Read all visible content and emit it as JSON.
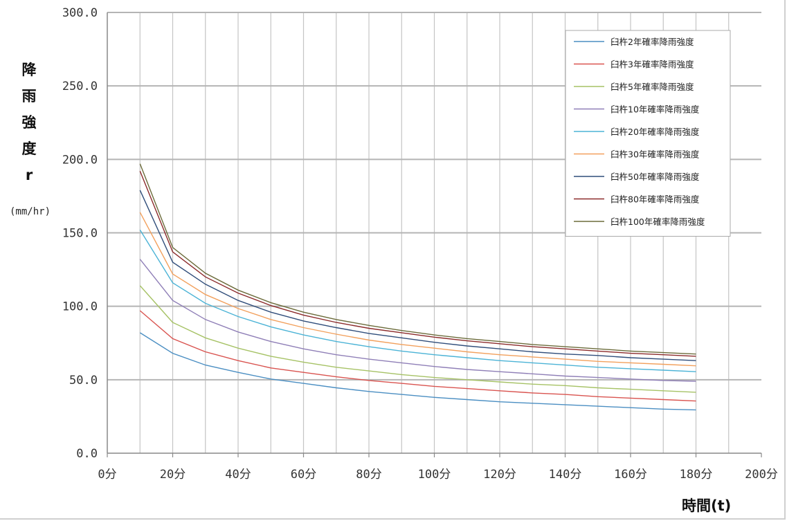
{
  "chart_data": {
    "type": "line",
    "title": "",
    "ylabel_chars": [
      "降",
      "雨",
      "強",
      "度",
      "r"
    ],
    "yunit": "(mm/hr)",
    "xlabel": "時間(t)",
    "ylim": [
      0,
      300
    ],
    "xlim": [
      0,
      200
    ],
    "yticks": [
      "0.0",
      "50.0",
      "100.0",
      "150.0",
      "200.0",
      "250.0",
      "300.0"
    ],
    "xticks": [
      "0分",
      "20分",
      "40分",
      "60分",
      "80分",
      "100分",
      "120分",
      "140分",
      "160分",
      "180分",
      "200分"
    ],
    "grid": true,
    "legend_position": "top-right",
    "x": [
      10,
      20,
      30,
      40,
      50,
      60,
      70,
      80,
      90,
      100,
      110,
      120,
      130,
      140,
      150,
      160,
      170,
      180
    ],
    "series": [
      {
        "name": "臼杵2年確率降雨強度",
        "color": "#4a8ec2",
        "values": [
          82,
          68,
          60,
          55,
          50.5,
          47.5,
          44.5,
          42,
          40,
          38,
          36.5,
          35,
          34,
          33,
          32,
          31,
          30,
          29.5
        ]
      },
      {
        "name": "臼杵3年確率降雨強度",
        "color": "#d9534f",
        "values": [
          97,
          78,
          69,
          63,
          58,
          55,
          52,
          49.5,
          47.5,
          45.5,
          44,
          42.5,
          41,
          40,
          38.5,
          37.5,
          36.5,
          35.5
        ]
      },
      {
        "name": "臼杵5年確率降雨強度",
        "color": "#a6c265",
        "values": [
          114,
          89,
          78.5,
          71.5,
          66,
          62,
          58.5,
          56,
          53.5,
          51.5,
          50,
          48.5,
          47,
          46,
          44.5,
          43.5,
          42.5,
          41.5
        ]
      },
      {
        "name": "臼杵10年確率降雨強度",
        "color": "#8f7fb7",
        "values": [
          132,
          104,
          91,
          82.5,
          76,
          71,
          67,
          64,
          61.5,
          59,
          57,
          55.5,
          54,
          52.5,
          51.5,
          50.5,
          49.5,
          49
        ]
      },
      {
        "name": "臼杵20年確率降雨強度",
        "color": "#4bb3d6",
        "values": [
          152,
          116,
          102,
          93,
          86,
          80.5,
          76,
          72.5,
          69.5,
          67,
          65,
          63,
          61.5,
          60,
          58.5,
          57.5,
          56.5,
          55.5
        ]
      },
      {
        "name": "臼杵30年確率降雨強度",
        "color": "#f2a05c",
        "values": [
          164,
          122,
          108,
          98.5,
          91,
          85.5,
          81,
          77,
          74,
          71.5,
          69,
          67,
          65.5,
          64,
          62.5,
          61.5,
          60.5,
          59.5
        ]
      },
      {
        "name": "臼杵50年確率降雨強度",
        "color": "#2f4d7a",
        "values": [
          179,
          130,
          115,
          104,
          96,
          90,
          85.5,
          81.5,
          78.5,
          75.5,
          73,
          71,
          69,
          67.5,
          66.5,
          65,
          64,
          63
        ]
      },
      {
        "name": "臼杵80年確率降雨強度",
        "color": "#8b2a2a",
        "values": [
          192,
          137,
          120,
          109,
          100.5,
          94,
          89,
          85,
          82,
          79,
          76.5,
          74.5,
          72.5,
          71,
          69.5,
          68,
          67,
          66
        ]
      },
      {
        "name": "臼杵100年確率降雨強度",
        "color": "#6b6b3a",
        "values": [
          197,
          140,
          122.5,
          111,
          102.5,
          96,
          91,
          87,
          83.5,
          80.5,
          78,
          76,
          74,
          72.5,
          71,
          69.5,
          68.5,
          67.5
        ]
      }
    ]
  }
}
